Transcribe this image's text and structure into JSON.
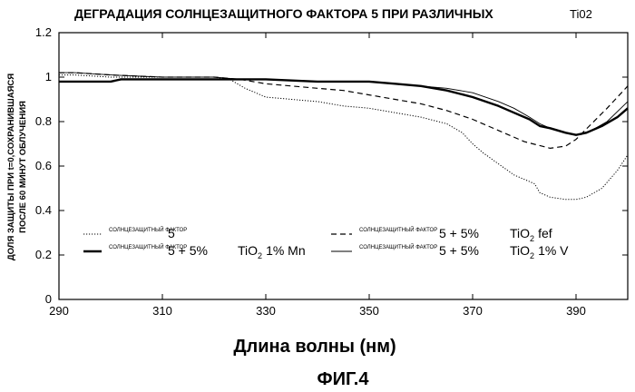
{
  "chart_data": {
    "type": "line",
    "title": "ДЕГРАДАЦИЯ СОЛНЦЕЗАЩИТНОГО ФАКТОРА 5 ПРИ РАЗЛИЧНЫХ",
    "title_suffix": "Ti02",
    "xlabel": "Длина волны (нм)",
    "ylabel_line1": "ДОЛЯ ЗАЩИТЫ ПРИ t=0,СОХРАНИВШАЯСЯ",
    "ylabel_line2": "ПОСЛЕ 60 МИНУТ ОБЛУЧЕНИЯ",
    "xlim": [
      290,
      400
    ],
    "ylim": [
      0,
      1.2
    ],
    "x_ticks": [
      290,
      310,
      330,
      350,
      370,
      390
    ],
    "y_ticks": [
      0,
      0.2,
      0.4,
      0.6,
      0.8,
      1,
      1.2
    ],
    "x_tick_labels": [
      "290",
      "310",
      "330",
      "350",
      "370",
      "390"
    ],
    "y_tick_labels": [
      "0",
      "0.2",
      "0.4",
      "0.6",
      "0.8",
      "1",
      "1.2"
    ],
    "grid": false,
    "legend_position": "bottom-inside",
    "series": [
      {
        "legend_small": "СОЛНЦЕЗАЩИТНЫЙ ФАКТОР",
        "legend_label": "5",
        "tio2_label": "",
        "tio2_suffix": "",
        "style": "dotted",
        "x": [
          290,
          293,
          300,
          310,
          320,
          323,
          326,
          330,
          335,
          340,
          345,
          350,
          355,
          360,
          365,
          368,
          370,
          372,
          375,
          378,
          381,
          382,
          383,
          385,
          388,
          390,
          392,
          395,
          398,
          400
        ],
        "y": [
          1.01,
          1.01,
          1.0,
          1.0,
          1.0,
          0.99,
          0.95,
          0.91,
          0.9,
          0.89,
          0.87,
          0.86,
          0.84,
          0.82,
          0.79,
          0.75,
          0.7,
          0.66,
          0.61,
          0.56,
          0.53,
          0.52,
          0.48,
          0.46,
          0.45,
          0.45,
          0.46,
          0.5,
          0.58,
          0.65
        ]
      },
      {
        "legend_small": "СОЛНЦЕЗАЩИТНЫЙ ФАКТОР",
        "legend_label": "5 + 5%",
        "tio2_label": "TiO",
        "tio2_suffix": "1% Mn",
        "style": "thick",
        "x": [
          290,
          293,
          300,
          302,
          310,
          320,
          325,
          330,
          340,
          350,
          355,
          360,
          365,
          370,
          375,
          378,
          381,
          383,
          385,
          388,
          390,
          392,
          395,
          398,
          400
        ],
        "y": [
          0.98,
          0.98,
          0.98,
          0.99,
          0.99,
          0.99,
          0.99,
          0.99,
          0.98,
          0.98,
          0.97,
          0.96,
          0.94,
          0.91,
          0.87,
          0.84,
          0.81,
          0.78,
          0.77,
          0.75,
          0.74,
          0.75,
          0.78,
          0.82,
          0.86
        ]
      },
      {
        "legend_small": "СОЛНЦЕЗАЩИТНЫЙ ФАКТОР",
        "legend_label": "5 + 5%",
        "tio2_label": "TiO",
        "tio2_suffix": "fef",
        "style": "dashed",
        "x": [
          290,
          293,
          300,
          310,
          320,
          325,
          330,
          335,
          340,
          345,
          350,
          355,
          360,
          365,
          370,
          375,
          380,
          385,
          388,
          390,
          393,
          396,
          400
        ],
        "y": [
          1.02,
          1.02,
          1.01,
          1.0,
          1.0,
          0.99,
          0.97,
          0.96,
          0.95,
          0.94,
          0.92,
          0.9,
          0.88,
          0.85,
          0.81,
          0.76,
          0.71,
          0.68,
          0.69,
          0.72,
          0.79,
          0.86,
          0.96
        ]
      },
      {
        "legend_small": "СОЛНЦЕЗАЩИТНЫЙ ФАКТОР",
        "legend_label": "5 + 5%",
        "tio2_label": "TiO",
        "tio2_suffix": "1% V",
        "style": "thin",
        "x": [
          290,
          293,
          300,
          310,
          320,
          325,
          330,
          340,
          350,
          355,
          360,
          365,
          370,
          375,
          378,
          381,
          383,
          385,
          388,
          390,
          393,
          396,
          400
        ],
        "y": [
          1.02,
          1.02,
          1.01,
          1.0,
          1.0,
          0.99,
          0.99,
          0.98,
          0.98,
          0.97,
          0.96,
          0.95,
          0.93,
          0.89,
          0.86,
          0.82,
          0.79,
          0.77,
          0.75,
          0.74,
          0.76,
          0.8,
          0.89
        ]
      }
    ],
    "figure_label": "ФИГ.4"
  }
}
